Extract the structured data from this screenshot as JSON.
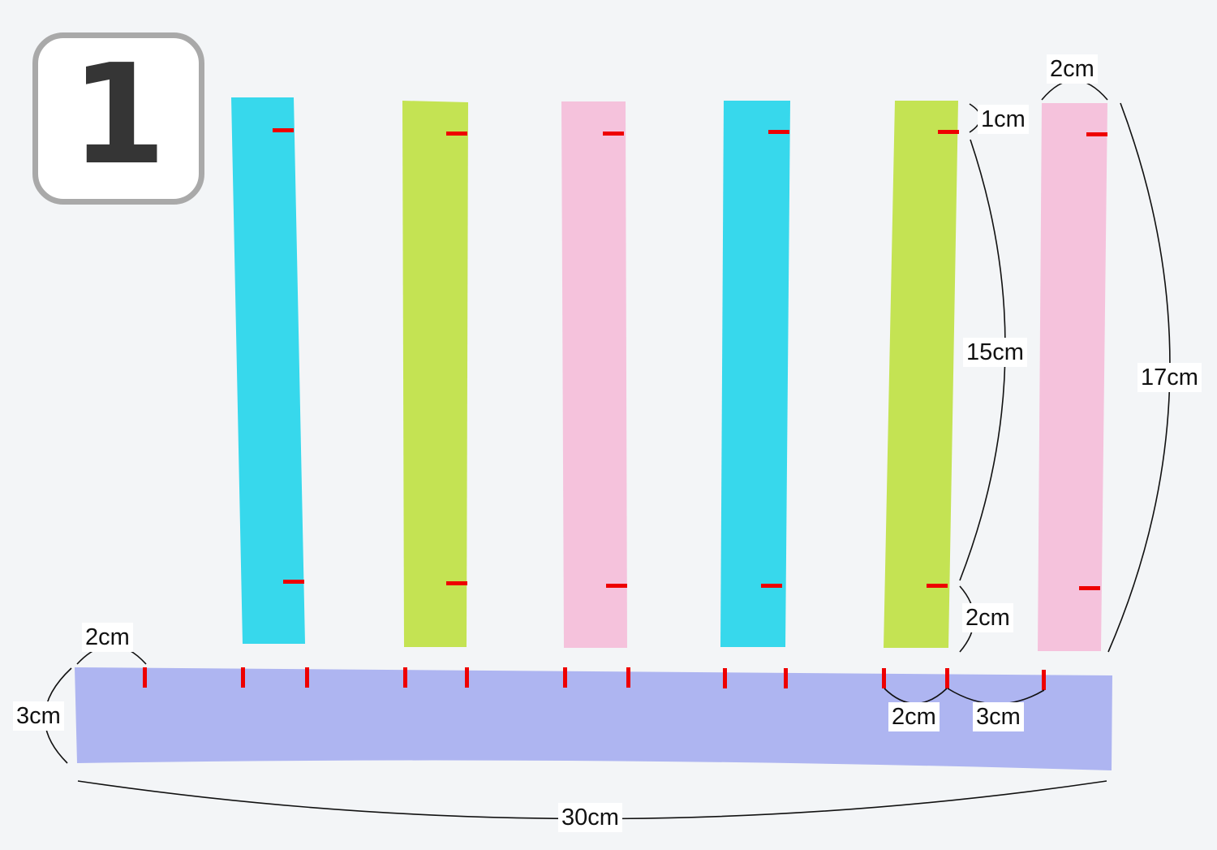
{
  "step_number": "1",
  "colors": {
    "background": "#f3f5f7",
    "cyan": "#37d8ec",
    "green": "#c4e353",
    "pink": "#f5c2dc",
    "lavender": "#aeb5f1",
    "mark": "#ee0000",
    "frame": "#a9a9a9"
  },
  "strips": [
    {
      "name": "cyan-strip-1",
      "color": "cyan"
    },
    {
      "name": "green-strip-1",
      "color": "green"
    },
    {
      "name": "pink-strip-1",
      "color": "pink"
    },
    {
      "name": "cyan-strip-2",
      "color": "cyan"
    },
    {
      "name": "green-strip-2",
      "color": "green"
    },
    {
      "name": "pink-strip-2",
      "color": "pink"
    }
  ],
  "base_strip": {
    "color": "lavender"
  },
  "labels": {
    "strip_width": "2cm",
    "top_margin": "1cm",
    "mark_spacing": "15cm",
    "bottom_margin": "2cm",
    "strip_length": "17cm",
    "base_first_gap": "2cm",
    "base_height": "3cm",
    "base_gap_2": "2cm",
    "base_gap_3": "3cm",
    "base_length": "30cm"
  }
}
